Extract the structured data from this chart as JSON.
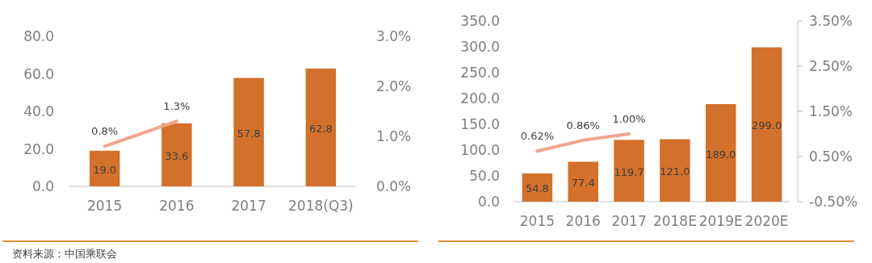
{
  "chart_data": [
    {
      "type": "bar",
      "categories": [
        "2015",
        "2016",
        "2017",
        "2018(Q3)"
      ],
      "series": [
        {
          "color": "#d3702b",
          "values": [
            19.0,
            33.6,
            57.8,
            62.8
          ],
          "value_labels": [
            "19.0",
            "33.6",
            "57.8",
            "62.8"
          ]
        },
        {
          "type": "line",
          "axis": "y2",
          "color": "#f0a58c",
          "values": [
            0.8,
            1.3,
            null,
            null
          ],
          "value_labels": [
            "0.8%",
            "1.3%",
            null,
            null
          ]
        }
      ],
      "ylim": [
        0,
        80
      ],
      "yticks": [
        {
          "value": 0,
          "label": "0.0"
        },
        {
          "value": 20,
          "label": "20.0"
        },
        {
          "value": 40,
          "label": "40.0"
        },
        {
          "value": 60,
          "label": "60.0"
        },
        {
          "value": 80,
          "label": "80.0"
        }
      ],
      "y2lim": [
        0,
        3
      ],
      "y2ticks": [
        {
          "value": 0,
          "label": "0.0%"
        },
        {
          "value": 1,
          "label": "1.0%"
        },
        {
          "value": 2,
          "label": "2.0%"
        },
        {
          "value": 3,
          "label": "3.0%"
        }
      ],
      "grid": false,
      "annotations": [
        "资料来源：中国乘联会"
      ]
    },
    {
      "type": "bar",
      "categories": [
        "2015",
        "2016",
        "2017",
        "2018E",
        "2019E",
        "2020E"
      ],
      "series": [
        {
          "color": "#d3702b",
          "values": [
            54.8,
            77.4,
            119.7,
            121.0,
            189.0,
            299.0
          ],
          "value_labels": [
            "54.8",
            "77.4",
            "119.7",
            "121.0",
            "189.0",
            "299.0"
          ]
        },
        {
          "type": "line",
          "axis": "y2",
          "color": "#f0a58c",
          "values": [
            0.62,
            0.86,
            1.0,
            null,
            null,
            null
          ],
          "value_labels": [
            "0.62%",
            "0.86%",
            "1.00%",
            null,
            null,
            null
          ]
        }
      ],
      "ylim": [
        0,
        350
      ],
      "yticks": [
        {
          "value": 0,
          "label": "0.0"
        },
        {
          "value": 50,
          "label": "50.0"
        },
        {
          "value": 100,
          "label": "100.0"
        },
        {
          "value": 150,
          "label": "150.0"
        },
        {
          "value": 200,
          "label": "200.0"
        },
        {
          "value": 250,
          "label": "250.0"
        },
        {
          "value": 300,
          "label": "300.0"
        },
        {
          "value": 350,
          "label": "350.0"
        }
      ],
      "y2lim": [
        -0.5,
        3.5
      ],
      "y2ticks": [
        {
          "value": -0.5,
          "label": "-0.50%"
        },
        {
          "value": 0.5,
          "label": "0.50%"
        },
        {
          "value": 1.5,
          "label": "1.50%"
        },
        {
          "value": 2.5,
          "label": "2.50%"
        },
        {
          "value": 3.5,
          "label": "3.50%"
        }
      ],
      "grid": false
    }
  ]
}
